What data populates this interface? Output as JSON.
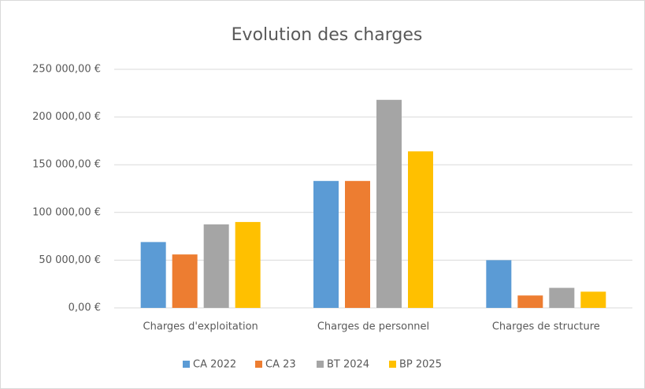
{
  "chart_data": {
    "type": "bar",
    "title": "Evolution des charges",
    "categories": [
      "Charges d'exploitation",
      "Charges de personnel",
      "Charges de structure"
    ],
    "series": [
      {
        "name": "CA 2022",
        "color": "#5b9bd5",
        "values": [
          69000,
          133000,
          50000
        ]
      },
      {
        "name": "CA 23",
        "color": "#ed7d31",
        "values": [
          56000,
          133000,
          13000
        ]
      },
      {
        "name": "BT 2024",
        "color": "#a5a5a5",
        "values": [
          87500,
          218000,
          21000
        ]
      },
      {
        "name": "BP 2025",
        "color": "#ffc000",
        "values": [
          90000,
          164000,
          17000
        ]
      }
    ],
    "ylim": [
      0,
      250000
    ],
    "yticks": [
      {
        "value": 0,
        "label": "0,00 €"
      },
      {
        "value": 50000,
        "label": "50 000,00 €"
      },
      {
        "value": 100000,
        "label": "100 000,00 €"
      },
      {
        "value": 150000,
        "label": "150 000,00 €"
      },
      {
        "value": 200000,
        "label": "200 000,00 €"
      },
      {
        "value": 250000,
        "label": "250 000,00 €"
      }
    ],
    "grid": true,
    "legend": "bottom"
  }
}
